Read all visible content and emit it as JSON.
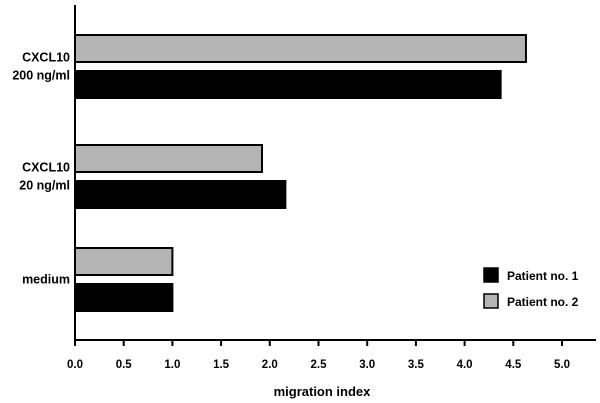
{
  "chart_data": {
    "type": "bar",
    "orientation": "horizontal",
    "categories": [
      {
        "lines": [
          "CXCL10",
          "200 ng/ml"
        ]
      },
      {
        "lines": [
          "CXCL10",
          "20 ng/ml"
        ]
      },
      {
        "lines": [
          "medium"
        ]
      }
    ],
    "series": [
      {
        "name": "Patient no. 1",
        "color": "#000000",
        "values": [
          4.37,
          2.16,
          1.0
        ]
      },
      {
        "name": "Patient no. 2",
        "color": "#b4b4b4",
        "values": [
          4.63,
          1.92,
          1.0
        ]
      }
    ],
    "xlabel": "migration index",
    "ylabel": "",
    "xlim": [
      0,
      5.5
    ],
    "xticks": [
      "0.0",
      "0.5",
      "1.0",
      "1.5",
      "2.0",
      "2.5",
      "3.0",
      "3.5",
      "4.0",
      "4.5",
      "5.0"
    ],
    "grid": false,
    "legend_position": "bottom-right"
  }
}
